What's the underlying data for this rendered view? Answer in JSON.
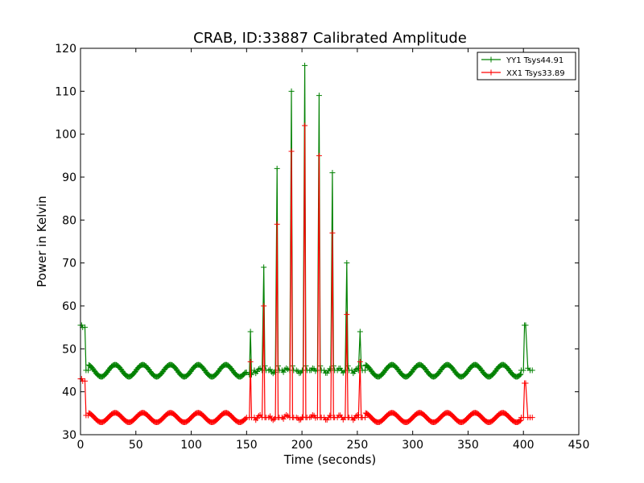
{
  "chart_data": {
    "type": "line",
    "title": "CRAB, ID:33887 Calibrated Amplitude",
    "xlabel": "Time (seconds)",
    "ylabel": "Power in Kelvin",
    "xlim": [
      0,
      450
    ],
    "ylim": [
      30,
      120
    ],
    "xticks": [
      0,
      50,
      100,
      150,
      200,
      250,
      300,
      350,
      400,
      450
    ],
    "yticks": [
      30,
      40,
      50,
      60,
      70,
      80,
      90,
      100,
      110,
      120
    ],
    "grid": false,
    "legend_position": "top-right",
    "marker": "+",
    "series": [
      {
        "name": "YY1 Tsys44.91",
        "color": "#008000",
        "baseline": 44.9,
        "ripple_amplitude": 1.4,
        "ripple_period": 25,
        "x": [
          0,
          1,
          2,
          4,
          5,
          7,
          150,
          152.5,
          153.5,
          154.5,
          157,
          164,
          165.5,
          166.5,
          167.5,
          170,
          176,
          177.5,
          178.5,
          179.5,
          182,
          189,
          190.5,
          191.5,
          192.5,
          195,
          201,
          202.5,
          203.5,
          204.5,
          207,
          214,
          215.5,
          216.5,
          217.5,
          220,
          226,
          227.5,
          228.5,
          229.5,
          232,
          239,
          240.5,
          241.5,
          242.5,
          245,
          251,
          252.5,
          253.5,
          254.5,
          257,
          398,
          400,
          401,
          402,
          404,
          406,
          408
        ],
        "y": [
          55.5,
          55.5,
          55,
          55,
          45,
          45,
          44.5,
          44,
          54,
          44,
          45,
          45,
          69,
          46,
          45,
          45,
          45,
          92,
          46,
          45,
          45,
          45,
          110,
          46,
          45,
          45,
          45,
          116,
          46,
          45,
          45,
          45,
          109,
          46,
          45,
          45,
          45,
          91,
          46,
          45,
          45,
          45,
          70,
          46,
          45,
          45,
          45,
          54,
          46,
          45,
          45,
          45,
          45,
          55.5,
          55.5,
          45.5,
          45,
          45
        ]
      },
      {
        "name": "XX1 Tsys33.89",
        "color": "#ff0000",
        "baseline": 34.0,
        "ripple_amplitude": 1.1,
        "ripple_period": 25,
        "x": [
          0,
          1,
          2,
          4,
          5,
          7,
          150,
          152.5,
          153.5,
          154.5,
          157,
          164,
          165.5,
          166.5,
          167.5,
          170,
          176,
          177.5,
          178.5,
          179.5,
          182,
          189,
          190.5,
          191.5,
          192.5,
          195,
          201,
          202.5,
          203.5,
          204.5,
          207,
          214,
          215.5,
          216.5,
          217.5,
          220,
          226,
          227.5,
          228.5,
          229.5,
          232,
          239,
          240.5,
          241.5,
          242.5,
          245,
          251,
          252.5,
          253.5,
          254.5,
          257,
          398,
          400,
          401,
          402,
          404,
          406,
          408
        ],
        "y": [
          43,
          43,
          42.5,
          42.5,
          34.5,
          34.5,
          34,
          34,
          47,
          34,
          34,
          34,
          60,
          34,
          34,
          34,
          34,
          79,
          34,
          34,
          34,
          34,
          96,
          34,
          34,
          34,
          34,
          102,
          34,
          34,
          34,
          34,
          95,
          34,
          34,
          34,
          34,
          77,
          34,
          34,
          34,
          34,
          58,
          34,
          34,
          34,
          34,
          47,
          34,
          34,
          34,
          34,
          34,
          42,
          42,
          34,
          34,
          34
        ]
      }
    ]
  }
}
